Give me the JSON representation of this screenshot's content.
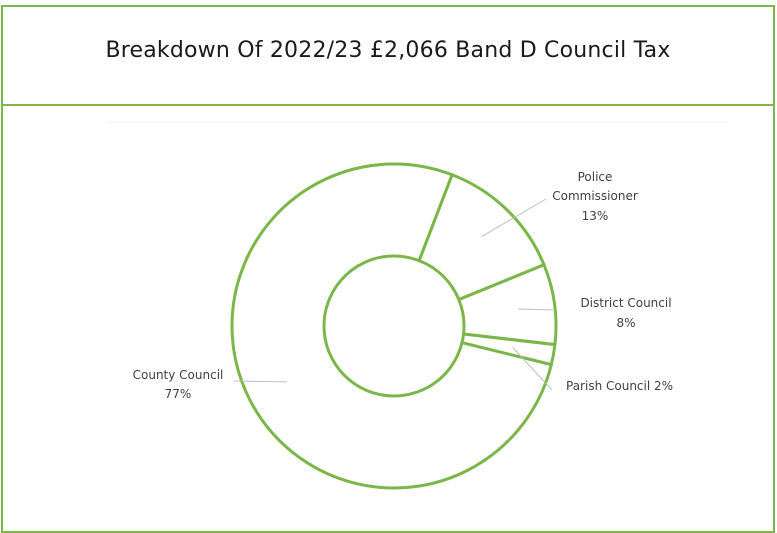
{
  "chart_data": {
    "type": "pie",
    "variant": "doughnut",
    "title": "Breakdown Of 2022/23 £2,066 Band D Council Tax",
    "slices": [
      {
        "label": "Police Commissioner",
        "value": 13,
        "display": [
          "Police",
          "Commissioner",
          "13%"
        ]
      },
      {
        "label": "District Council",
        "value": 8,
        "display": [
          "District Council",
          "8%"
        ]
      },
      {
        "label": "Parish Council",
        "value": 2,
        "display": [
          "Parish Council 2%"
        ]
      },
      {
        "label": "County Council",
        "value": 77,
        "display": [
          "County Council",
          "77%"
        ]
      }
    ],
    "legend": "none",
    "start_angle_deg": 21,
    "direction": "clockwise",
    "colors": {
      "fill": "#ffffff",
      "stroke": "#7ab648",
      "label": "#404040",
      "leader": "#bfbfbf"
    }
  }
}
